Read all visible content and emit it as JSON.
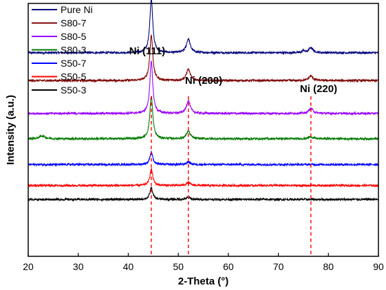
{
  "chart_data": {
    "type": "line",
    "title": "",
    "xlabel": "2-Theta (°)",
    "ylabel": "Intensity (a.u.)",
    "xlim": [
      20,
      90
    ],
    "xticks": [
      20,
      30,
      40,
      50,
      60,
      70,
      80,
      90
    ],
    "yticks": [],
    "grid": false,
    "legend_position": "top-left",
    "peak_markers": [
      {
        "x": 44.6,
        "label": "Ni (111)"
      },
      {
        "x": 52.0,
        "label": "Ni (200)"
      },
      {
        "x": 76.5,
        "label": "Ni (220)"
      }
    ],
    "reference_line_color": "#ff0000",
    "series": [
      {
        "name": "Pure Ni",
        "color": "#00007a",
        "baseline": 0.805,
        "peaks": [
          {
            "x": 44.6,
            "height": 0.215,
            "width": 0.35
          },
          {
            "x": 52.0,
            "height": 0.055,
            "width": 0.45
          },
          {
            "x": 76.5,
            "height": 0.02,
            "width": 0.5
          },
          {
            "x": 75.0,
            "height": 0.01,
            "width": 0.2
          }
        ]
      },
      {
        "name": "S80-7",
        "color": "#7b0000",
        "baseline": 0.695,
        "peaks": [
          {
            "x": 44.6,
            "height": 0.18,
            "width": 0.35
          },
          {
            "x": 52.0,
            "height": 0.045,
            "width": 0.45
          },
          {
            "x": 76.5,
            "height": 0.018,
            "width": 0.5
          }
        ]
      },
      {
        "name": "S80-5",
        "color": "#9900ff",
        "baseline": 0.565,
        "peaks": [
          {
            "x": 44.6,
            "height": 0.205,
            "width": 0.35
          },
          {
            "x": 52.0,
            "height": 0.05,
            "width": 0.45
          },
          {
            "x": 76.5,
            "height": 0.02,
            "width": 0.5
          }
        ]
      },
      {
        "name": "S80-3",
        "color": "#007a00",
        "baseline": 0.465,
        "peaks": [
          {
            "x": 44.6,
            "height": 0.17,
            "width": 0.35
          },
          {
            "x": 52.0,
            "height": 0.03,
            "width": 0.45
          },
          {
            "x": 22.8,
            "height": 0.012,
            "width": 0.6
          },
          {
            "x": 76.5,
            "height": 0.008,
            "width": 0.5
          }
        ]
      },
      {
        "name": "S50-7",
        "color": "#0000ff",
        "baseline": 0.363,
        "peaks": [
          {
            "x": 44.6,
            "height": 0.05,
            "width": 0.35
          },
          {
            "x": 52.0,
            "height": 0.01,
            "width": 0.45
          }
        ]
      },
      {
        "name": "S50-5",
        "color": "#ff0000",
        "baseline": 0.28,
        "peaks": [
          {
            "x": 44.6,
            "height": 0.065,
            "width": 0.35
          },
          {
            "x": 52.0,
            "height": 0.012,
            "width": 0.45
          }
        ]
      },
      {
        "name": "S50-3",
        "color": "#000000",
        "baseline": 0.225,
        "peaks": [
          {
            "x": 44.6,
            "height": 0.045,
            "width": 0.35
          },
          {
            "x": 52.0,
            "height": 0.008,
            "width": 0.45
          }
        ]
      }
    ]
  }
}
